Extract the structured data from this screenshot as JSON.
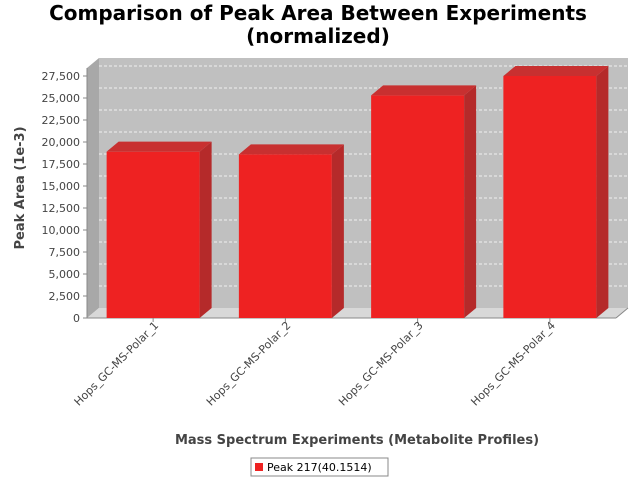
{
  "chart_data": {
    "type": "bar",
    "title": "Comparison of Peak Area Between Experiments",
    "subtitle": "(normalized)",
    "xlabel": "Mass Spectrum Experiments (Metabolite Profiles)",
    "ylabel": "Peak Area (1e-3)",
    "categories": [
      "Hops_GC-MS-Polar_1",
      "Hops_GC-MS-Polar_2",
      "Hops_GC-MS-Polar_3",
      "Hops_GC-MS-Polar_4"
    ],
    "series": [
      {
        "name": "Peak 217(40.1514)",
        "values": [
          18900,
          18600,
          25300,
          27500
        ],
        "color": "#ee2222"
      }
    ],
    "ylim": [
      0,
      27500
    ],
    "yticks": [
      0,
      2500,
      5000,
      7500,
      10000,
      12500,
      15000,
      17500,
      20000,
      22500,
      25000,
      27500
    ],
    "ytick_labels": [
      "0",
      "2,500",
      "5,000",
      "7,500",
      "10,000",
      "12,500",
      "15,000",
      "17,500",
      "20,000",
      "22,500",
      "25,000",
      "27,500"
    ],
    "grid": true,
    "legend_position": "bottom",
    "plot_background": "#c0c0c0"
  }
}
